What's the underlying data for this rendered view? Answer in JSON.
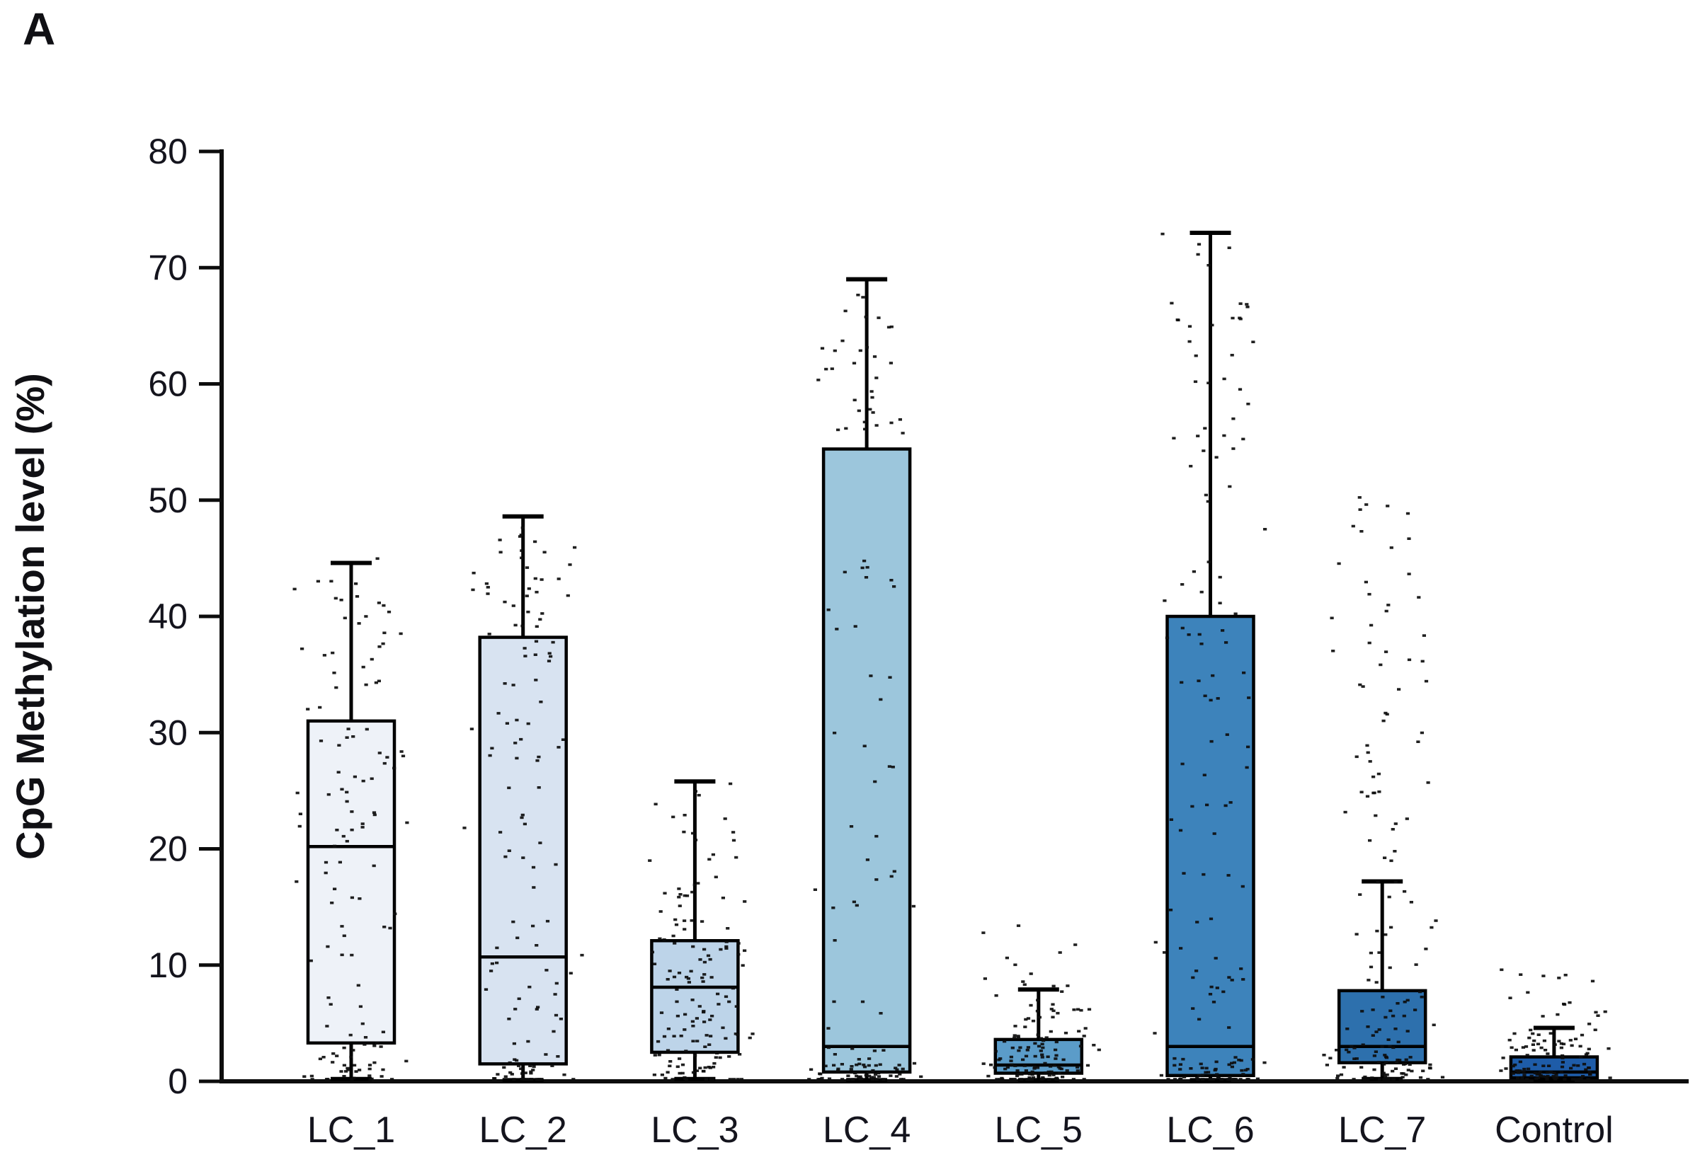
{
  "panel_label": "A",
  "chart_data": {
    "type": "boxplot",
    "title": "",
    "xlabel": "",
    "ylabel": "CpG Methylation level (%)",
    "ylim": [
      0,
      80
    ],
    "yticks": [
      0,
      10,
      20,
      30,
      40,
      50,
      60,
      70,
      80
    ],
    "grid": false,
    "legend_position": "none",
    "categories": [
      "LC_1",
      "LC_2",
      "LC_3",
      "LC_4",
      "LC_5",
      "LC_6",
      "LC_7",
      "Control"
    ],
    "axis_color": "#0d0d0d",
    "box_border_color": "#000000",
    "point_color": "#0d0d0d",
    "tick_label_color": "#14141d",
    "series": [
      {
        "name": "LC_1",
        "whisker_low": 0.2,
        "q1": 3.3,
        "median": 20.2,
        "q3": 31.0,
        "whisker_high": 44.6,
        "fill": "#eef2f8",
        "jitter_segments": [
          [
            0,
            3,
            35
          ],
          [
            3,
            9,
            12
          ],
          [
            9,
            20,
            18
          ],
          [
            20,
            31,
            35
          ],
          [
            31,
            43,
            26
          ],
          [
            42,
            45,
            4
          ]
        ]
      },
      {
        "name": "LC_2",
        "whisker_low": 0.1,
        "q1": 1.5,
        "median": 10.7,
        "q3": 38.2,
        "whisker_high": 48.6,
        "fill": "#d8e3f1",
        "jitter_segments": [
          [
            0,
            2,
            32
          ],
          [
            2,
            11,
            22
          ],
          [
            11,
            25,
            18
          ],
          [
            25,
            38,
            28
          ],
          [
            38,
            48,
            33
          ]
        ]
      },
      {
        "name": "LC_3",
        "whisker_low": 0.2,
        "q1": 2.5,
        "median": 8.1,
        "q3": 12.1,
        "whisker_high": 25.8,
        "fill": "#bdd4e9",
        "jitter_segments": [
          [
            0,
            2.5,
            40
          ],
          [
            2.5,
            8,
            40
          ],
          [
            8,
            12,
            30
          ],
          [
            12,
            20,
            28
          ],
          [
            20,
            26,
            12
          ]
        ]
      },
      {
        "name": "LC_4",
        "whisker_low": 0.1,
        "q1": 0.8,
        "median": 3.0,
        "q3": 54.4,
        "whisker_high": 69.0,
        "fill": "#9cc6dc",
        "jitter_segments": [
          [
            0,
            1.5,
            55
          ],
          [
            1.5,
            3,
            8
          ],
          [
            3,
            15,
            6
          ],
          [
            15,
            35,
            18
          ],
          [
            35,
            45,
            10
          ],
          [
            55,
            65,
            28
          ],
          [
            65,
            69,
            5
          ]
        ]
      },
      {
        "name": "LC_5",
        "whisker_low": 0.1,
        "q1": 0.7,
        "median": 1.4,
        "q3": 3.6,
        "whisker_high": 7.9,
        "fill": "#5b9cc9",
        "jitter_segments": [
          [
            0,
            1.5,
            60
          ],
          [
            1.5,
            4,
            40
          ],
          [
            4,
            8,
            25
          ],
          [
            8,
            13.5,
            12
          ]
        ]
      },
      {
        "name": "LC_6",
        "whisker_low": 0.1,
        "q1": 0.5,
        "median": 3.0,
        "q3": 40.0,
        "whisker_high": 73.0,
        "fill": "#3d83bb",
        "jitter_segments": [
          [
            0,
            2,
            55
          ],
          [
            2,
            12,
            20
          ],
          [
            12,
            32,
            20
          ],
          [
            32,
            50,
            25
          ],
          [
            50,
            65,
            22
          ],
          [
            65,
            73,
            15
          ]
        ]
      },
      {
        "name": "LC_7",
        "whisker_low": 0.2,
        "q1": 1.6,
        "median": 3.0,
        "q3": 7.8,
        "whisker_high": 17.2,
        "fill": "#2d70ad",
        "jitter_segments": [
          [
            0,
            3,
            70
          ],
          [
            3,
            8,
            25
          ],
          [
            8,
            18,
            20
          ],
          [
            18,
            35,
            30
          ],
          [
            35,
            51,
            25
          ]
        ]
      },
      {
        "name": "Control",
        "whisker_low": 0.05,
        "q1": 0.3,
        "median": 0.8,
        "q3": 2.1,
        "whisker_high": 4.6,
        "fill": "#1e5ca8",
        "jitter_segments": [
          [
            0,
            1.5,
            65
          ],
          [
            1.5,
            4,
            35
          ],
          [
            4,
            7,
            15
          ],
          [
            7,
            10,
            8
          ]
        ]
      }
    ]
  }
}
